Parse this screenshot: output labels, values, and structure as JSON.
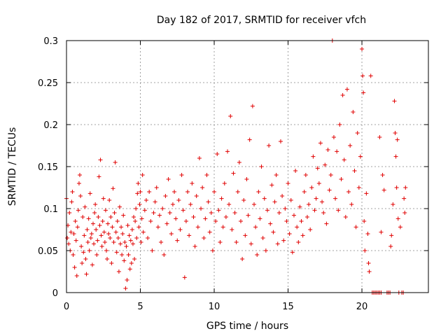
{
  "chart_data": {
    "type": "scatter",
    "title": "Day 182 of 2017, SRMTID for receiver vfch",
    "xlabel": "GPS time / hours",
    "ylabel": "SRMTID / TECUs",
    "xlim": [
      0,
      24.5
    ],
    "ylim": [
      0,
      0.3
    ],
    "x_ticks": [
      0,
      5,
      10,
      15,
      20
    ],
    "x_tick_labels": [
      "0",
      "5",
      "10",
      "15",
      "20"
    ],
    "y_ticks": [
      0,
      0.05,
      0.1,
      0.15,
      0.2,
      0.25,
      0.3
    ],
    "y_tick_labels": [
      "0",
      "0.05",
      "0.1",
      "0.15",
      "0.2",
      "0.25",
      "0.3"
    ],
    "grid": true,
    "marker": "+",
    "color": "#e00000",
    "series": [
      {
        "name": "SRMTID",
        "points": [
          [
            0.0,
            0.112
          ],
          [
            0.05,
            0.065
          ],
          [
            0.1,
            0.08
          ],
          [
            0.15,
            0.058
          ],
          [
            0.2,
            0.095
          ],
          [
            0.25,
            0.05
          ],
          [
            0.3,
            0.072
          ],
          [
            0.35,
            0.108
          ],
          [
            0.4,
            0.12
          ],
          [
            0.45,
            0.045
          ],
          [
            0.5,
            0.07
          ],
          [
            0.55,
            0.03
          ],
          [
            0.6,
            0.085
          ],
          [
            0.65,
            0.062
          ],
          [
            0.7,
            0.02
          ],
          [
            0.75,
            0.078
          ],
          [
            0.8,
            0.098
          ],
          [
            0.85,
            0.13
          ],
          [
            0.9,
            0.14
          ],
          [
            0.95,
            0.115
          ],
          [
            1.0,
            0.055
          ],
          [
            1.05,
            0.035
          ],
          [
            1.1,
            0.09
          ],
          [
            1.15,
            0.048
          ],
          [
            1.2,
            0.068
          ],
          [
            1.25,
            0.102
          ],
          [
            1.3,
            0.04
          ],
          [
            1.35,
            0.022
          ],
          [
            1.4,
            0.075
          ],
          [
            1.45,
            0.06
          ],
          [
            1.5,
            0.088
          ],
          [
            1.55,
            0.05
          ],
          [
            1.6,
            0.118
          ],
          [
            1.65,
            0.065
          ],
          [
            1.7,
            0.07
          ],
          [
            1.75,
            0.033
          ],
          [
            1.8,
            0.082
          ],
          [
            1.85,
            0.058
          ],
          [
            1.9,
            0.095
          ],
          [
            1.95,
            0.105
          ],
          [
            2.0,
            0.075
          ],
          [
            2.05,
            0.045
          ],
          [
            2.1,
            0.062
          ],
          [
            2.15,
            0.09
          ],
          [
            2.2,
            0.138
          ],
          [
            2.25,
            0.08
          ],
          [
            2.3,
            0.158
          ],
          [
            2.35,
            0.068
          ],
          [
            2.4,
            0.055
          ],
          [
            2.45,
            0.085
          ],
          [
            2.5,
            0.112
          ],
          [
            2.55,
            0.072
          ],
          [
            2.6,
            0.06
          ],
          [
            2.65,
            0.098
          ],
          [
            2.7,
            0.05
          ],
          [
            2.75,
            0.04
          ],
          [
            2.8,
            0.082
          ],
          [
            2.85,
            0.07
          ],
          [
            2.9,
            0.11
          ],
          [
            2.95,
            0.065
          ],
          [
            3.0,
            0.09
          ],
          [
            3.05,
            0.035
          ],
          [
            3.1,
            0.078
          ],
          [
            3.15,
            0.124
          ],
          [
            3.2,
            0.06
          ],
          [
            3.25,
            0.095
          ],
          [
            3.3,
            0.155
          ],
          [
            3.35,
            0.072
          ],
          [
            3.4,
            0.048
          ],
          [
            3.45,
            0.085
          ],
          [
            3.5,
            0.065
          ],
          [
            3.55,
            0.025
          ],
          [
            3.6,
            0.102
          ],
          [
            3.65,
            0.058
          ],
          [
            3.7,
            0.078
          ],
          [
            3.75,
            0.045
          ],
          [
            3.8,
            0.07
          ],
          [
            3.85,
            0.092
          ],
          [
            3.9,
            0.038
          ],
          [
            3.95,
            0.06
          ],
          [
            4.0,
            0.005
          ],
          [
            4.05,
            0.055
          ],
          [
            4.1,
            0.015
          ],
          [
            4.15,
            0.08
          ],
          [
            4.2,
            0.045
          ],
          [
            4.25,
            0.068
          ],
          [
            4.3,
            0.028
          ],
          [
            4.35,
            0.062
          ],
          [
            4.4,
            0.035
          ],
          [
            4.45,
            0.075
          ],
          [
            4.5,
            0.058
          ],
          [
            4.55,
            0.09
          ],
          [
            4.6,
            0.04
          ],
          [
            4.65,
            0.085
          ],
          [
            4.7,
            0.1
          ],
          [
            4.75,
            0.065
          ],
          [
            4.8,
            0.118
          ],
          [
            4.85,
            0.13
          ],
          [
            4.9,
            0.078
          ],
          [
            4.95,
            0.105
          ],
          [
            5.0,
            0.12
          ],
          [
            5.05,
            0.06
          ],
          [
            5.1,
            0.088
          ],
          [
            5.15,
            0.14
          ],
          [
            5.2,
            0.072
          ],
          [
            5.3,
            0.098
          ],
          [
            5.4,
            0.11
          ],
          [
            5.5,
            0.065
          ],
          [
            5.6,
            0.12
          ],
          [
            5.7,
            0.085
          ],
          [
            5.8,
            0.05
          ],
          [
            5.9,
            0.095
          ],
          [
            6.0,
            0.108
          ],
          [
            6.1,
            0.125
          ],
          [
            6.2,
            0.078
          ],
          [
            6.3,
            0.092
          ],
          [
            6.4,
            0.06
          ],
          [
            6.5,
            0.1
          ],
          [
            6.6,
            0.045
          ],
          [
            6.7,
            0.115
          ],
          [
            6.8,
            0.082
          ],
          [
            6.9,
            0.135
          ],
          [
            7.0,
            0.095
          ],
          [
            7.1,
            0.07
          ],
          [
            7.2,
            0.105
          ],
          [
            7.3,
            0.12
          ],
          [
            7.4,
            0.088
          ],
          [
            7.5,
            0.062
          ],
          [
            7.6,
            0.11
          ],
          [
            7.7,
            0.075
          ],
          [
            7.8,
            0.14
          ],
          [
            7.9,
            0.098
          ],
          [
            8.0,
            0.018
          ],
          [
            8.1,
            0.085
          ],
          [
            8.2,
            0.12
          ],
          [
            8.3,
            0.068
          ],
          [
            8.4,
            0.105
          ],
          [
            8.5,
            0.13
          ],
          [
            8.6,
            0.09
          ],
          [
            8.7,
            0.055
          ],
          [
            8.8,
            0.115
          ],
          [
            8.9,
            0.078
          ],
          [
            9.0,
            0.16
          ],
          [
            9.1,
            0.1
          ],
          [
            9.2,
            0.125
          ],
          [
            9.3,
            0.065
          ],
          [
            9.4,
            0.088
          ],
          [
            9.5,
            0.14
          ],
          [
            9.6,
            0.108
          ],
          [
            9.7,
            0.072
          ],
          [
            9.8,
            0.095
          ],
          [
            9.9,
            0.05
          ],
          [
            10.0,
            0.12
          ],
          [
            10.1,
            0.085
          ],
          [
            10.2,
            0.165
          ],
          [
            10.3,
            0.098
          ],
          [
            10.4,
            0.06
          ],
          [
            10.5,
            0.112
          ],
          [
            10.6,
            0.078
          ],
          [
            10.7,
            0.13
          ],
          [
            10.8,
            0.09
          ],
          [
            10.9,
            0.168
          ],
          [
            11.0,
            0.105
          ],
          [
            11.1,
            0.21
          ],
          [
            11.2,
            0.075
          ],
          [
            11.3,
            0.142
          ],
          [
            11.4,
            0.095
          ],
          [
            11.5,
            0.06
          ],
          [
            11.6,
            0.12
          ],
          [
            11.7,
            0.155
          ],
          [
            11.8,
            0.085
          ],
          [
            11.9,
            0.04
          ],
          [
            12.0,
            0.11
          ],
          [
            12.1,
            0.068
          ],
          [
            12.2,
            0.135
          ],
          [
            12.3,
            0.092
          ],
          [
            12.4,
            0.182
          ],
          [
            12.5,
            0.058
          ],
          [
            12.6,
            0.222
          ],
          [
            12.7,
            0.105
          ],
          [
            12.8,
            0.078
          ],
          [
            12.9,
            0.045
          ],
          [
            13.0,
            0.12
          ],
          [
            13.1,
            0.088
          ],
          [
            13.2,
            0.15
          ],
          [
            13.3,
            0.065
          ],
          [
            13.4,
            0.112
          ],
          [
            13.5,
            0.05
          ],
          [
            13.6,
            0.098
          ],
          [
            13.7,
            0.175
          ],
          [
            13.8,
            0.082
          ],
          [
            13.9,
            0.128
          ],
          [
            14.0,
            0.072
          ],
          [
            14.1,
            0.108
          ],
          [
            14.2,
            0.14
          ],
          [
            14.3,
            0.058
          ],
          [
            14.4,
            0.095
          ],
          [
            14.5,
            0.18
          ],
          [
            14.6,
            0.115
          ],
          [
            14.7,
            0.062
          ],
          [
            14.8,
            0.1
          ],
          [
            14.9,
            0.085
          ],
          [
            15.0,
            0.13
          ],
          [
            15.1,
            0.07
          ],
          [
            15.2,
            0.11
          ],
          [
            15.3,
            0.048
          ],
          [
            15.4,
            0.092
          ],
          [
            15.5,
            0.145
          ],
          [
            15.6,
            0.078
          ],
          [
            15.7,
            0.06
          ],
          [
            15.8,
            0.102
          ],
          [
            15.9,
            0.085
          ],
          [
            16.0,
            0.068
          ],
          [
            16.1,
            0.12
          ],
          [
            16.2,
            0.14
          ],
          [
            16.3,
            0.09
          ],
          [
            16.4,
            0.105
          ],
          [
            16.5,
            0.075
          ],
          [
            16.6,
            0.125
          ],
          [
            16.7,
            0.162
          ],
          [
            16.8,
            0.098
          ],
          [
            16.9,
            0.112
          ],
          [
            17.0,
            0.148
          ],
          [
            17.1,
            0.13
          ],
          [
            17.2,
            0.178
          ],
          [
            17.3,
            0.108
          ],
          [
            17.4,
            0.095
          ],
          [
            17.5,
            0.152
          ],
          [
            17.6,
            0.082
          ],
          [
            17.7,
            0.17
          ],
          [
            17.8,
            0.122
          ],
          [
            17.9,
            0.14
          ],
          [
            18.0,
            0.3
          ],
          [
            18.1,
            0.185
          ],
          [
            18.2,
            0.112
          ],
          [
            18.3,
            0.168
          ],
          [
            18.4,
            0.098
          ],
          [
            18.5,
            0.2
          ],
          [
            18.6,
            0.135
          ],
          [
            18.7,
            0.235
          ],
          [
            18.8,
            0.158
          ],
          [
            18.9,
            0.09
          ],
          [
            19.0,
            0.242
          ],
          [
            19.1,
            0.12
          ],
          [
            19.2,
            0.175
          ],
          [
            19.3,
            0.105
          ],
          [
            19.4,
            0.215
          ],
          [
            19.5,
            0.145
          ],
          [
            19.6,
            0.078
          ],
          [
            19.7,
            0.19
          ],
          [
            19.8,
            0.125
          ],
          [
            19.9,
            0.162
          ],
          [
            20.0,
            0.29
          ],
          [
            20.05,
            0.258
          ],
          [
            20.1,
            0.238
          ],
          [
            20.15,
            0.085
          ],
          [
            20.2,
            0.05
          ],
          [
            20.3,
            0.118
          ],
          [
            20.4,
            0.07
          ],
          [
            20.45,
            0.035
          ],
          [
            20.5,
            0.025
          ],
          [
            20.6,
            0.258
          ],
          [
            20.7,
            0.0
          ],
          [
            20.8,
            0.0
          ],
          [
            20.9,
            0.0
          ],
          [
            21.0,
            0.0
          ],
          [
            21.1,
            0.0
          ],
          [
            21.2,
            0.0
          ],
          [
            21.3,
            0.0
          ],
          [
            21.2,
            0.185
          ],
          [
            21.3,
            0.072
          ],
          [
            21.4,
            0.14
          ],
          [
            21.5,
            0.122
          ],
          [
            21.7,
            0.0
          ],
          [
            21.8,
            0.0
          ],
          [
            21.9,
            0.0
          ],
          [
            21.95,
            0.055
          ],
          [
            22.0,
            0.068
          ],
          [
            22.1,
            0.105
          ],
          [
            22.2,
            0.228
          ],
          [
            22.25,
            0.19
          ],
          [
            22.3,
            0.162
          ],
          [
            22.35,
            0.125
          ],
          [
            22.4,
            0.182
          ],
          [
            22.45,
            0.088
          ],
          [
            22.5,
            0.0
          ],
          [
            22.6,
            0.078
          ],
          [
            22.7,
            0.0
          ],
          [
            22.8,
            0.0
          ],
          [
            22.85,
            0.112
          ],
          [
            22.9,
            0.095
          ],
          [
            22.95,
            0.125
          ]
        ]
      }
    ]
  }
}
